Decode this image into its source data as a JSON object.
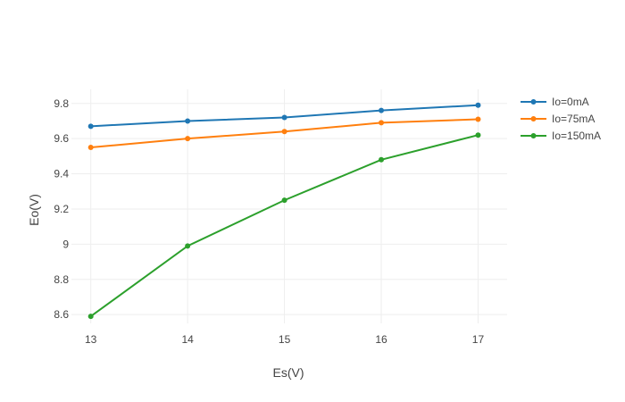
{
  "chart_data": {
    "type": "line",
    "x": [
      13,
      14,
      15,
      16,
      17
    ],
    "xlabel": "Es(V)",
    "ylabel": "Eo(V)",
    "xlim": [
      12.8,
      17.3
    ],
    "ylim": [
      8.55,
      9.88
    ],
    "xticks": [
      13,
      14,
      15,
      16,
      17
    ],
    "xtick_labels": [
      "13",
      "14",
      "15",
      "16",
      "17"
    ],
    "yticks": [
      8.6,
      8.8,
      9.0,
      9.2,
      9.4,
      9.6,
      9.8
    ],
    "ytick_labels": [
      "8.6",
      "8.8",
      "9",
      "9.2",
      "9.4",
      "9.6",
      "9.8"
    ],
    "grid": true,
    "legend_position": "top-right",
    "series": [
      {
        "name": "Io=0mA",
        "color": "#1f77b4",
        "values": [
          9.67,
          9.7,
          9.72,
          9.76,
          9.79
        ]
      },
      {
        "name": "Io=75mA",
        "color": "#ff7f0e",
        "values": [
          9.55,
          9.6,
          9.64,
          9.69,
          9.71
        ]
      },
      {
        "name": "Io=150mA",
        "color": "#2ca02c",
        "values": [
          8.59,
          8.99,
          9.25,
          9.48,
          9.62
        ]
      }
    ]
  }
}
